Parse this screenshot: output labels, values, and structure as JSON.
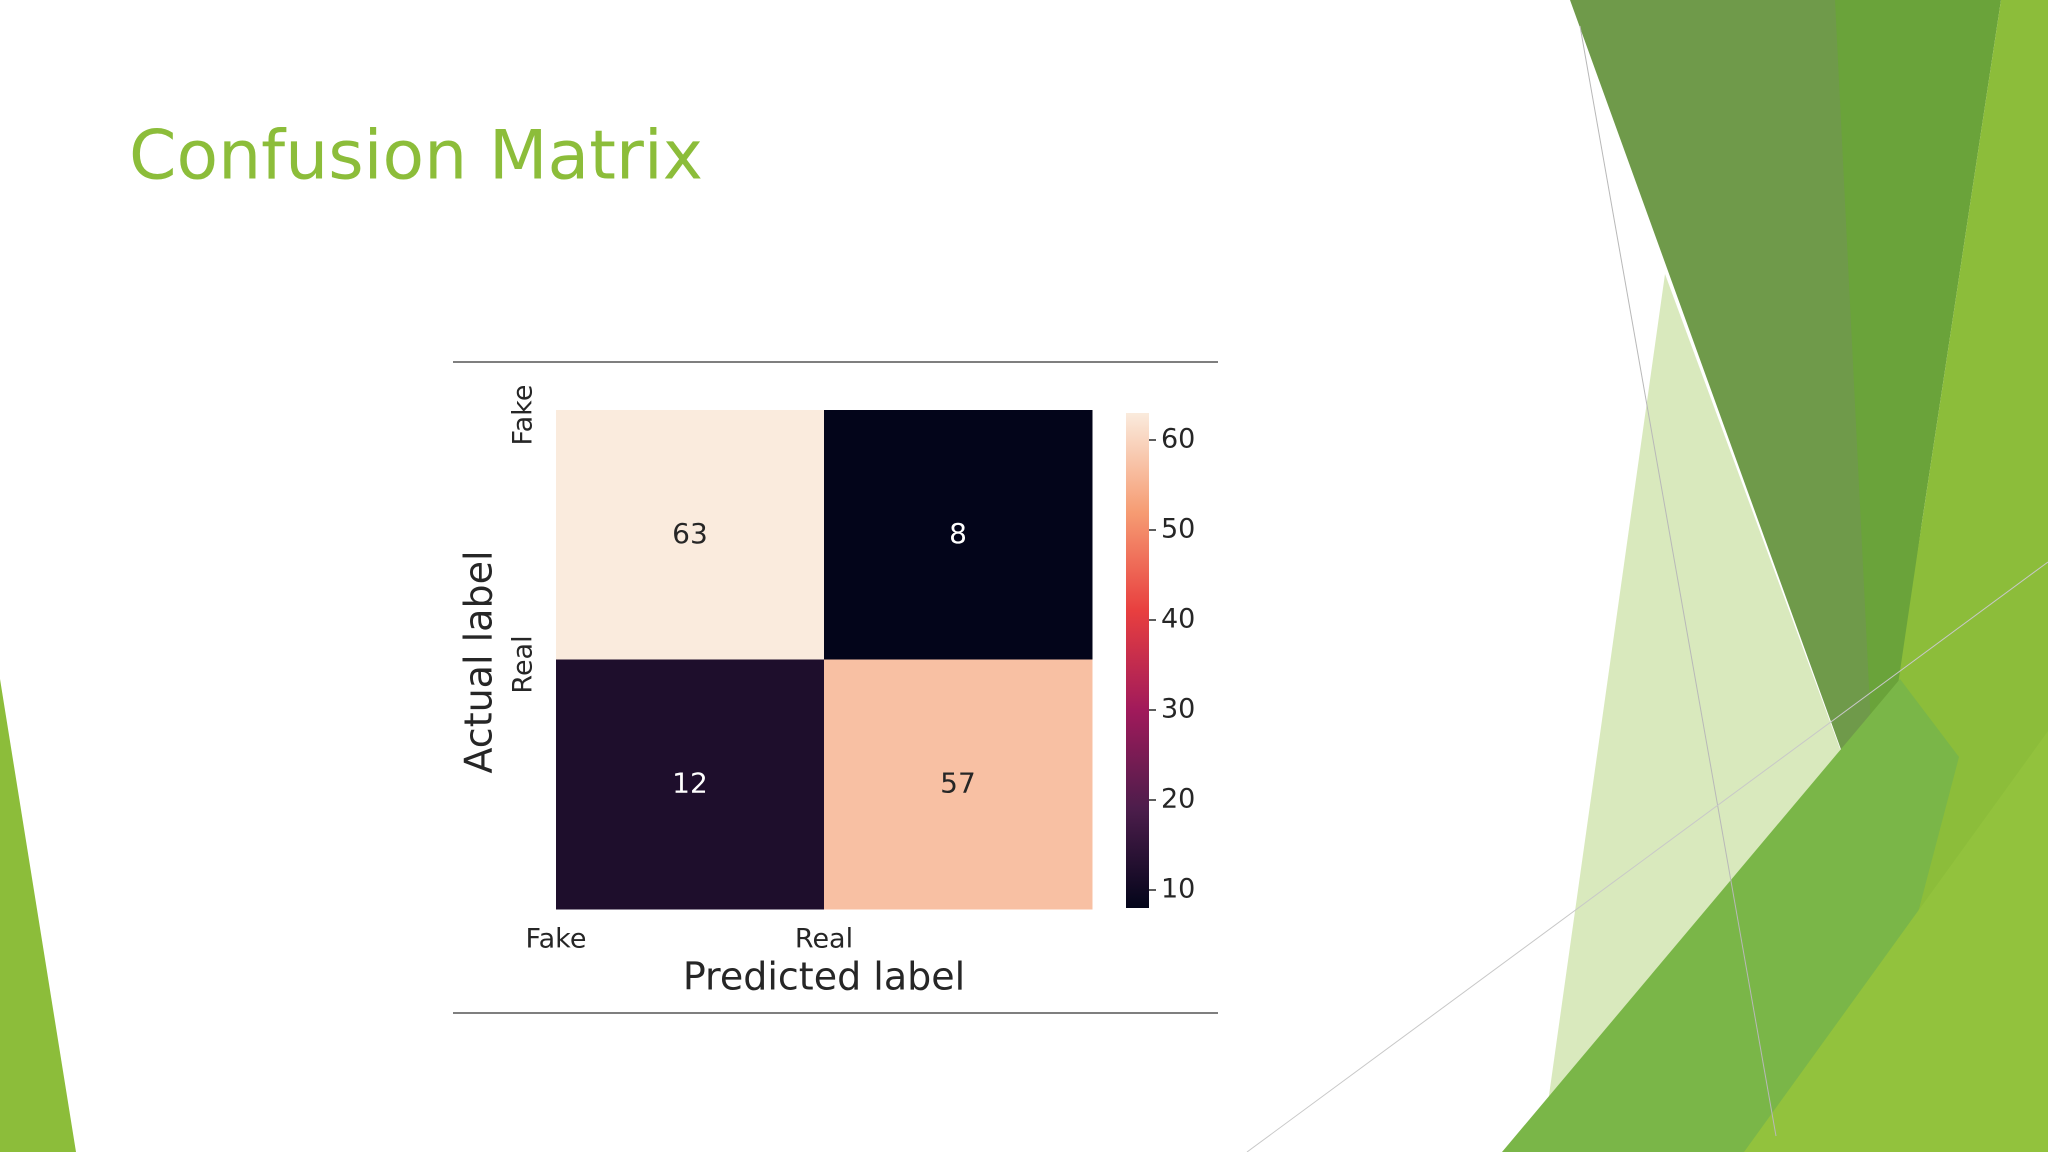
{
  "chart_data": {
    "type": "heatmap",
    "title": "Confusion Matrix",
    "categories": [
      "Fake",
      "Real"
    ],
    "y_categories": [
      "Fake",
      "Real"
    ],
    "values": [
      [
        63,
        8
      ],
      [
        12,
        57
      ]
    ],
    "xlabel": "Predicted label",
    "ylabel": "Actual label",
    "colormap": [
      "#03051a",
      "#4c1d4b",
      "#a11a5b",
      "#e83f3f",
      "#f69c73",
      "#faebdd"
    ],
    "clim": [
      8,
      63
    ],
    "colorbar_ticks": [
      10,
      20,
      30,
      40,
      50,
      60
    ]
  }
}
